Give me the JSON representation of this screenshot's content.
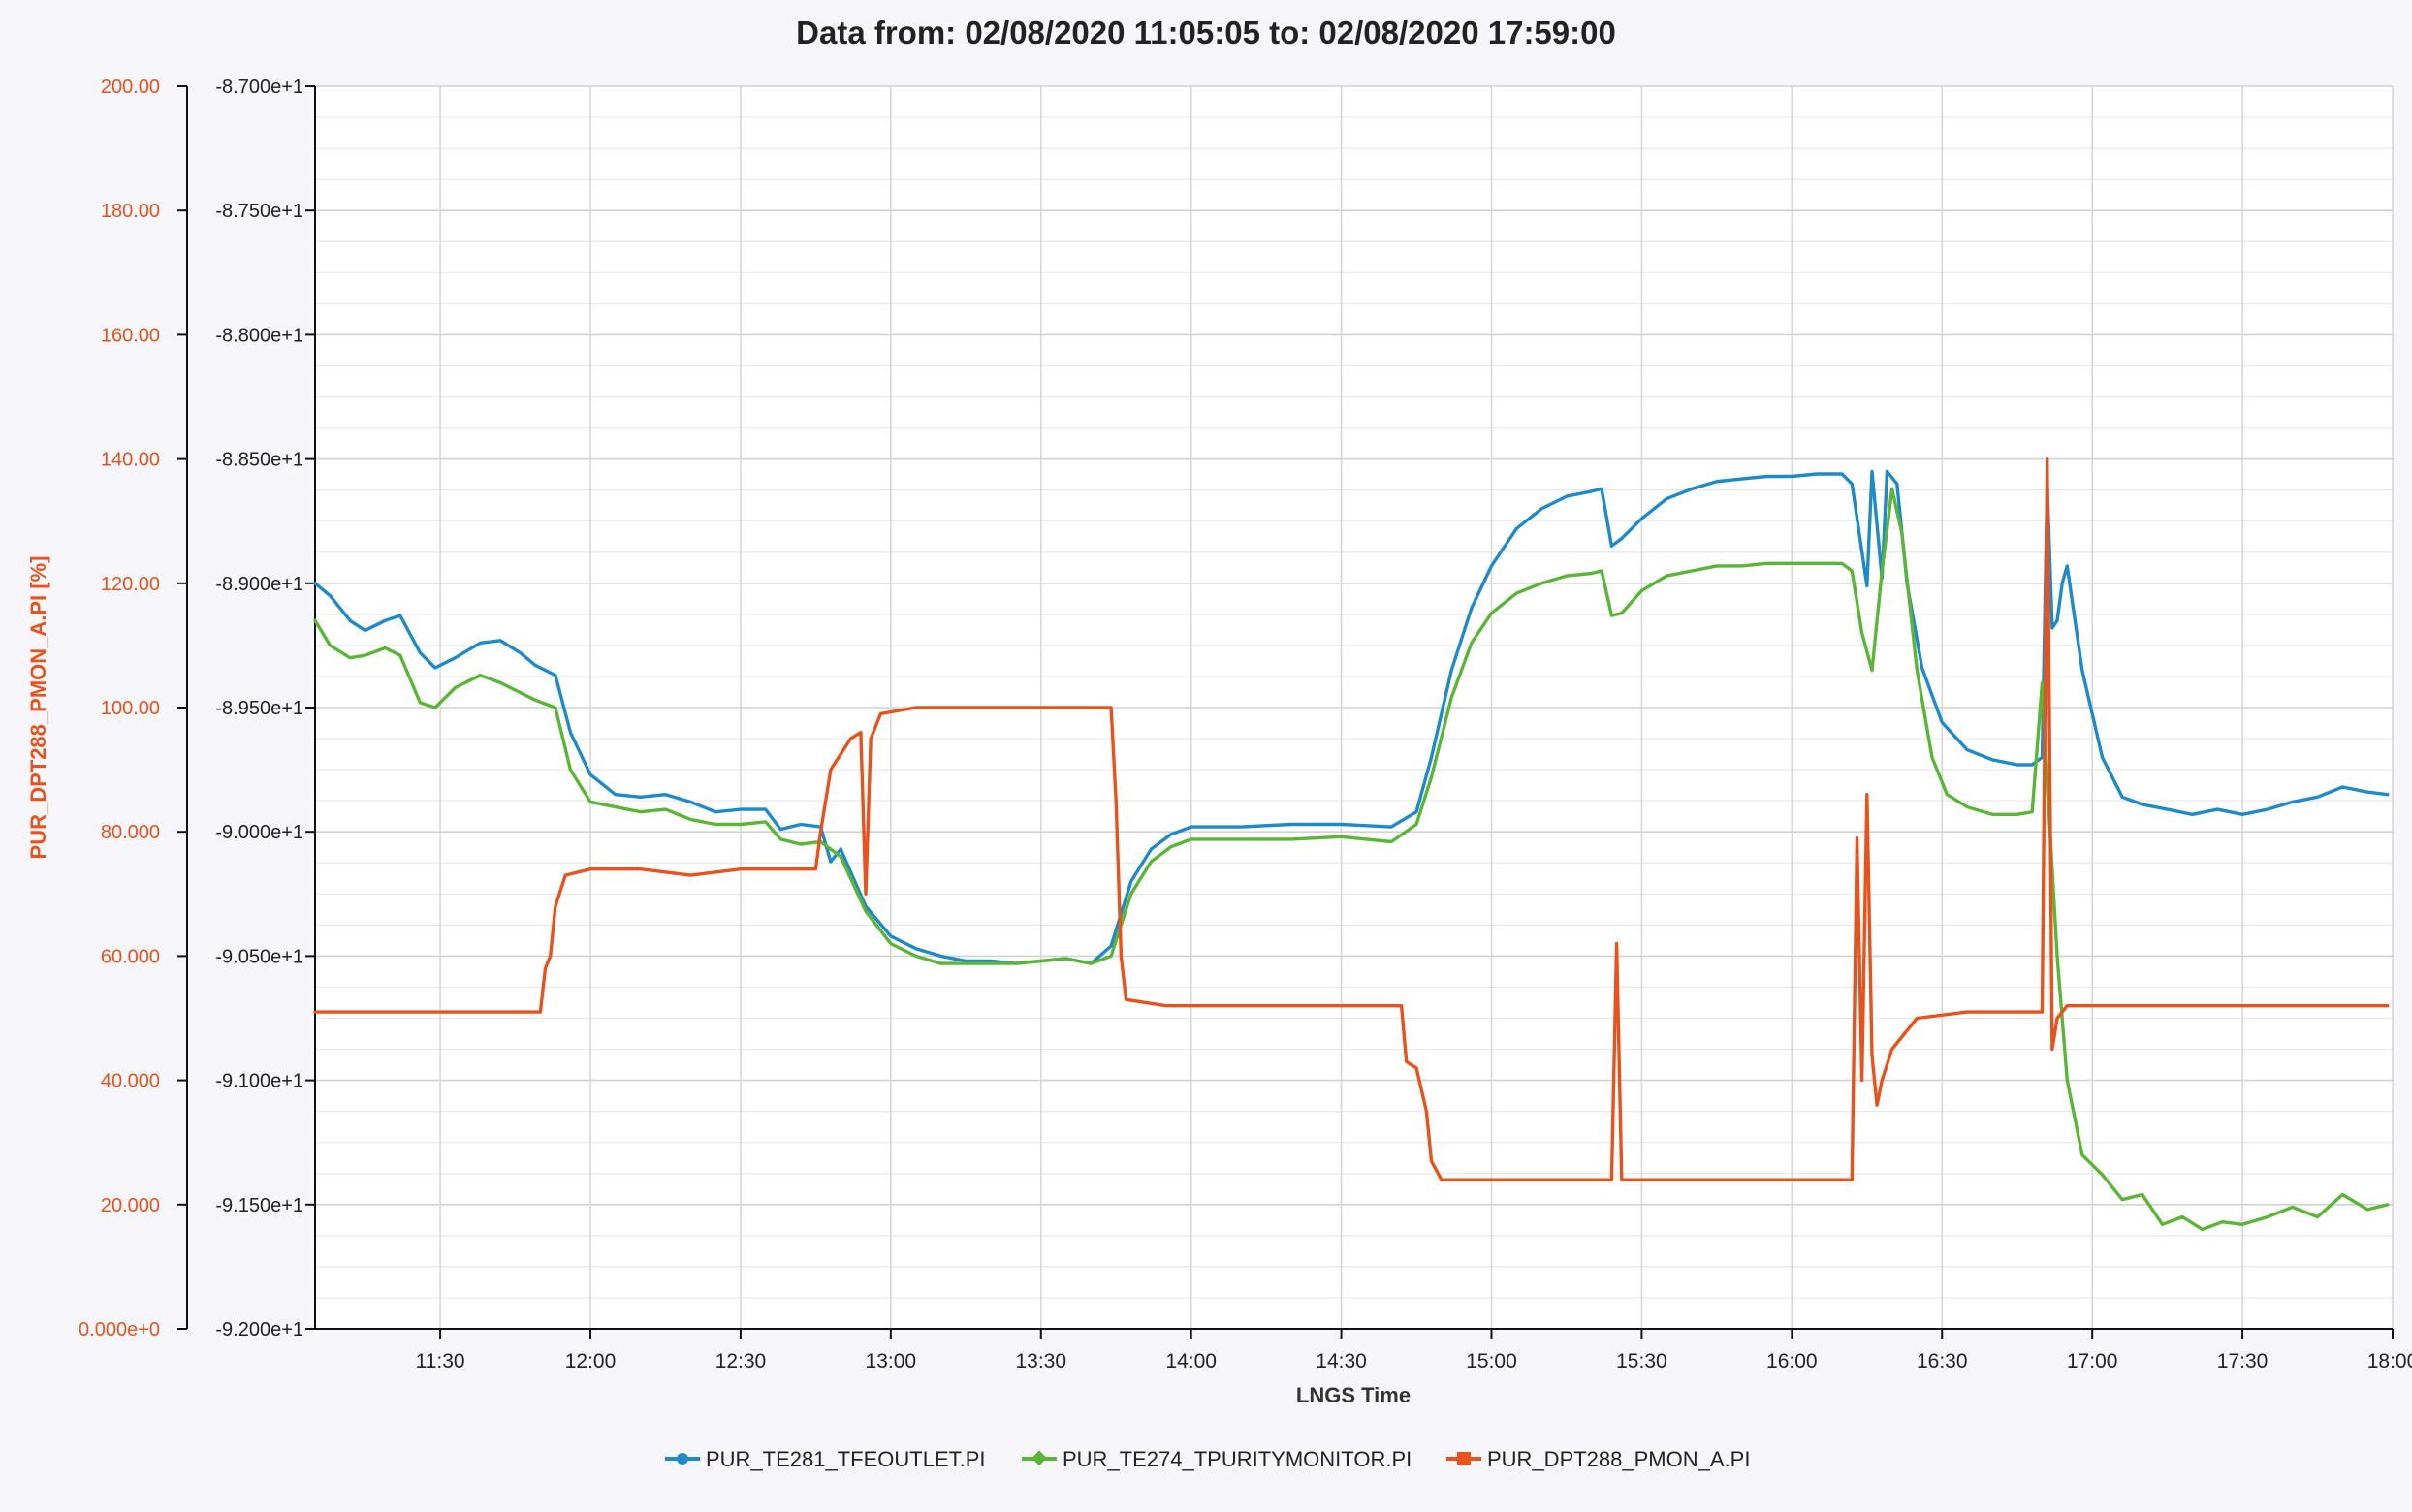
{
  "chart_data": {
    "type": "line",
    "title": "Data from: 02/08/2020 11:05:05 to: 02/08/2020 17:59:00",
    "xlabel": "LNGS Time",
    "x_range": [
      "11:05",
      "18:00"
    ],
    "x_ticks": [
      "11:30",
      "12:00",
      "12:30",
      "13:00",
      "13:30",
      "14:00",
      "14:30",
      "15:00",
      "15:30",
      "16:00",
      "16:30",
      "17:00",
      "17:30",
      "18:00"
    ],
    "y_left": {
      "label": "PUR_DPT288_PMON_A.PI [%]",
      "range": [
        0,
        200
      ],
      "ticks": [
        "0.000e+0",
        "20.000",
        "40.000",
        "60.000",
        "80.000",
        "100.00",
        "120.00",
        "140.00",
        "160.00",
        "180.00",
        "200.00"
      ],
      "color": "#e8531d"
    },
    "y_right_inner": {
      "label": "",
      "range": [
        -92.0,
        -87.0
      ],
      "ticks": [
        "-9.200e+1",
        "-9.150e+1",
        "-9.100e+1",
        "-9.050e+1",
        "-9.000e+1",
        "-8.950e+1",
        "-8.900e+1",
        "-8.850e+1",
        "-8.800e+1",
        "-8.750e+1",
        "-8.700e+1"
      ]
    },
    "grid": true,
    "legend_position": "bottom",
    "series": [
      {
        "name": "PUR_TE281_TFEOUTLET.PI",
        "axis": "inner",
        "color": "#1f8ac9",
        "points": [
          [
            "11:05",
            -89.0
          ],
          [
            "11:08",
            -89.05
          ],
          [
            "11:12",
            -89.15
          ],
          [
            "11:15",
            -89.19
          ],
          [
            "11:19",
            -89.15
          ],
          [
            "11:22",
            -89.13
          ],
          [
            "11:26",
            -89.28
          ],
          [
            "11:29",
            -89.34
          ],
          [
            "11:33",
            -89.3
          ],
          [
            "11:38",
            -89.24
          ],
          [
            "11:42",
            -89.23
          ],
          [
            "11:46",
            -89.28
          ],
          [
            "11:49",
            -89.33
          ],
          [
            "11:53",
            -89.37
          ],
          [
            "11:56",
            -89.6
          ],
          [
            "12:00",
            -89.77
          ],
          [
            "12:05",
            -89.85
          ],
          [
            "12:10",
            -89.86
          ],
          [
            "12:15",
            -89.85
          ],
          [
            "12:20",
            -89.88
          ],
          [
            "12:25",
            -89.92
          ],
          [
            "12:30",
            -89.91
          ],
          [
            "12:35",
            -89.91
          ],
          [
            "12:38",
            -89.99
          ],
          [
            "12:42",
            -89.97
          ],
          [
            "12:46",
            -89.98
          ],
          [
            "12:48",
            -90.12
          ],
          [
            "12:50",
            -90.07
          ],
          [
            "12:55",
            -90.3
          ],
          [
            "13:00",
            -90.42
          ],
          [
            "13:05",
            -90.47
          ],
          [
            "13:10",
            -90.5
          ],
          [
            "13:15",
            -90.52
          ],
          [
            "13:20",
            -90.52
          ],
          [
            "13:25",
            -90.53
          ],
          [
            "13:30",
            -90.52
          ],
          [
            "13:35",
            -90.51
          ],
          [
            "13:40",
            -90.53
          ],
          [
            "13:44",
            -90.46
          ],
          [
            "13:48",
            -90.2
          ],
          [
            "13:52",
            -90.07
          ],
          [
            "13:56",
            -90.01
          ],
          [
            "14:00",
            -89.98
          ],
          [
            "14:10",
            -89.98
          ],
          [
            "14:20",
            -89.97
          ],
          [
            "14:30",
            -89.97
          ],
          [
            "14:40",
            -89.98
          ],
          [
            "14:45",
            -89.92
          ],
          [
            "14:48",
            -89.7
          ],
          [
            "14:52",
            -89.35
          ],
          [
            "14:56",
            -89.1
          ],
          [
            "15:00",
            -88.93
          ],
          [
            "15:05",
            -88.78
          ],
          [
            "15:10",
            -88.7
          ],
          [
            "15:15",
            -88.65
          ],
          [
            "15:20",
            -88.63
          ],
          [
            "15:22",
            -88.62
          ],
          [
            "15:24",
            -88.85
          ],
          [
            "15:26",
            -88.82
          ],
          [
            "15:30",
            -88.74
          ],
          [
            "15:35",
            -88.66
          ],
          [
            "15:40",
            -88.62
          ],
          [
            "15:45",
            -88.59
          ],
          [
            "15:50",
            -88.58
          ],
          [
            "15:55",
            -88.57
          ],
          [
            "16:00",
            -88.57
          ],
          [
            "16:05",
            -88.56
          ],
          [
            "16:10",
            -88.56
          ],
          [
            "16:12",
            -88.6
          ],
          [
            "16:15",
            -89.01
          ],
          [
            "16:16",
            -88.55
          ],
          [
            "16:18",
            -88.98
          ],
          [
            "16:19",
            -88.55
          ],
          [
            "16:21",
            -88.6
          ],
          [
            "16:23",
            -89.0
          ],
          [
            "16:26",
            -89.34
          ],
          [
            "16:30",
            -89.56
          ],
          [
            "16:35",
            -89.67
          ],
          [
            "16:40",
            -89.71
          ],
          [
            "16:45",
            -89.73
          ],
          [
            "16:48",
            -89.73
          ],
          [
            "16:50",
            -89.7
          ],
          [
            "16:51",
            -88.6
          ],
          [
            "16:52",
            -89.18
          ],
          [
            "16:53",
            -89.15
          ],
          [
            "16:54",
            -89.0
          ],
          [
            "16:55",
            -88.93
          ],
          [
            "16:58",
            -89.35
          ],
          [
            "17:02",
            -89.7
          ],
          [
            "17:06",
            -89.86
          ],
          [
            "17:10",
            -89.89
          ],
          [
            "17:15",
            -89.91
          ],
          [
            "17:20",
            -89.93
          ],
          [
            "17:25",
            -89.91
          ],
          [
            "17:30",
            -89.93
          ],
          [
            "17:35",
            -89.91
          ],
          [
            "17:40",
            -89.88
          ],
          [
            "17:45",
            -89.86
          ],
          [
            "17:50",
            -89.82
          ],
          [
            "17:55",
            -89.84
          ],
          [
            "17:59",
            -89.85
          ]
        ]
      },
      {
        "name": "PUR_TE274_TPURITYMONITOR.PI",
        "axis": "inner",
        "color": "#5bb536",
        "points": [
          [
            "11:05",
            -89.15
          ],
          [
            "11:08",
            -89.25
          ],
          [
            "11:12",
            -89.3
          ],
          [
            "11:15",
            -89.29
          ],
          [
            "11:19",
            -89.26
          ],
          [
            "11:22",
            -89.29
          ],
          [
            "11:26",
            -89.48
          ],
          [
            "11:29",
            -89.5
          ],
          [
            "11:33",
            -89.42
          ],
          [
            "11:38",
            -89.37
          ],
          [
            "11:42",
            -89.4
          ],
          [
            "11:46",
            -89.44
          ],
          [
            "11:49",
            -89.47
          ],
          [
            "11:53",
            -89.5
          ],
          [
            "11:56",
            -89.75
          ],
          [
            "12:00",
            -89.88
          ],
          [
            "12:05",
            -89.9
          ],
          [
            "12:10",
            -89.92
          ],
          [
            "12:15",
            -89.91
          ],
          [
            "12:20",
            -89.95
          ],
          [
            "12:25",
            -89.97
          ],
          [
            "12:30",
            -89.97
          ],
          [
            "12:35",
            -89.96
          ],
          [
            "12:38",
            -90.03
          ],
          [
            "12:42",
            -90.05
          ],
          [
            "12:46",
            -90.04
          ],
          [
            "12:50",
            -90.1
          ],
          [
            "12:55",
            -90.32
          ],
          [
            "13:00",
            -90.45
          ],
          [
            "13:05",
            -90.5
          ],
          [
            "13:10",
            -90.53
          ],
          [
            "13:15",
            -90.53
          ],
          [
            "13:20",
            -90.53
          ],
          [
            "13:25",
            -90.53
          ],
          [
            "13:30",
            -90.52
          ],
          [
            "13:35",
            -90.51
          ],
          [
            "13:40",
            -90.53
          ],
          [
            "13:44",
            -90.5
          ],
          [
            "13:48",
            -90.25
          ],
          [
            "13:52",
            -90.12
          ],
          [
            "13:56",
            -90.06
          ],
          [
            "14:00",
            -90.03
          ],
          [
            "14:10",
            -90.03
          ],
          [
            "14:20",
            -90.03
          ],
          [
            "14:30",
            -90.02
          ],
          [
            "14:40",
            -90.04
          ],
          [
            "14:45",
            -89.97
          ],
          [
            "14:48",
            -89.78
          ],
          [
            "14:52",
            -89.46
          ],
          [
            "14:56",
            -89.24
          ],
          [
            "15:00",
            -89.12
          ],
          [
            "15:05",
            -89.04
          ],
          [
            "15:10",
            -89.0
          ],
          [
            "15:15",
            -88.97
          ],
          [
            "15:20",
            -88.96
          ],
          [
            "15:22",
            -88.95
          ],
          [
            "15:24",
            -89.13
          ],
          [
            "15:26",
            -89.12
          ],
          [
            "15:30",
            -89.03
          ],
          [
            "15:35",
            -88.97
          ],
          [
            "15:40",
            -88.95
          ],
          [
            "15:45",
            -88.93
          ],
          [
            "15:50",
            -88.93
          ],
          [
            "15:55",
            -88.92
          ],
          [
            "16:00",
            -88.92
          ],
          [
            "16:05",
            -88.92
          ],
          [
            "16:10",
            -88.92
          ],
          [
            "16:12",
            -88.95
          ],
          [
            "16:14",
            -89.2
          ],
          [
            "16:16",
            -89.35
          ],
          [
            "16:18",
            -88.95
          ],
          [
            "16:20",
            -88.62
          ],
          [
            "16:22",
            -88.8
          ],
          [
            "16:25",
            -89.35
          ],
          [
            "16:28",
            -89.7
          ],
          [
            "16:31",
            -89.85
          ],
          [
            "16:35",
            -89.9
          ],
          [
            "16:40",
            -89.93
          ],
          [
            "16:45",
            -89.93
          ],
          [
            "16:48",
            -89.92
          ],
          [
            "16:50",
            -89.4
          ],
          [
            "16:51",
            -89.8
          ],
          [
            "16:53",
            -90.5
          ],
          [
            "16:55",
            -91.0
          ],
          [
            "16:58",
            -91.3
          ],
          [
            "17:02",
            -91.38
          ],
          [
            "17:06",
            -91.48
          ],
          [
            "17:10",
            -91.46
          ],
          [
            "17:14",
            -91.58
          ],
          [
            "17:18",
            -91.55
          ],
          [
            "17:22",
            -91.6
          ],
          [
            "17:26",
            -91.57
          ],
          [
            "17:30",
            -91.58
          ],
          [
            "17:35",
            -91.55
          ],
          [
            "17:40",
            -91.51
          ],
          [
            "17:45",
            -91.55
          ],
          [
            "17:50",
            -91.46
          ],
          [
            "17:55",
            -91.52
          ],
          [
            "17:59",
            -91.5
          ]
        ]
      },
      {
        "name": "PUR_DPT288_PMON_A.PI",
        "axis": "left",
        "color": "#e8531d",
        "points": [
          [
            "11:05",
            51
          ],
          [
            "11:15",
            51
          ],
          [
            "11:25",
            51
          ],
          [
            "11:35",
            51
          ],
          [
            "11:45",
            51
          ],
          [
            "11:50",
            51
          ],
          [
            "11:51",
            58
          ],
          [
            "11:52",
            60
          ],
          [
            "11:53",
            68
          ],
          [
            "11:55",
            73
          ],
          [
            "12:00",
            74
          ],
          [
            "12:10",
            74
          ],
          [
            "12:20",
            73
          ],
          [
            "12:30",
            74
          ],
          [
            "12:40",
            74
          ],
          [
            "12:45",
            74
          ],
          [
            "12:46",
            80
          ],
          [
            "12:48",
            90
          ],
          [
            "12:52",
            95
          ],
          [
            "12:54",
            96
          ],
          [
            "12:55",
            70
          ],
          [
            "12:56",
            95
          ],
          [
            "12:58",
            99
          ],
          [
            "13:05",
            100
          ],
          [
            "13:15",
            100
          ],
          [
            "13:25",
            100
          ],
          [
            "13:35",
            100
          ],
          [
            "13:44",
            100
          ],
          [
            "13:45",
            85
          ],
          [
            "13:46",
            60
          ],
          [
            "13:47",
            53
          ],
          [
            "13:55",
            52
          ],
          [
            "14:05",
            52
          ],
          [
            "14:15",
            52
          ],
          [
            "14:25",
            52
          ],
          [
            "14:35",
            52
          ],
          [
            "14:42",
            52
          ],
          [
            "14:43",
            43
          ],
          [
            "14:45",
            42
          ],
          [
            "14:47",
            35
          ],
          [
            "14:48",
            27
          ],
          [
            "14:50",
            24
          ],
          [
            "15:00",
            24
          ],
          [
            "15:10",
            24
          ],
          [
            "15:20",
            24
          ],
          [
            "15:24",
            24
          ],
          [
            "15:25",
            62
          ],
          [
            "15:26",
            24
          ],
          [
            "15:35",
            24
          ],
          [
            "15:45",
            24
          ],
          [
            "15:55",
            24
          ],
          [
            "16:05",
            24
          ],
          [
            "16:12",
            24
          ],
          [
            "16:13",
            79
          ],
          [
            "16:14",
            40
          ],
          [
            "16:15",
            86
          ],
          [
            "16:16",
            44
          ],
          [
            "16:17",
            36
          ],
          [
            "16:18",
            40
          ],
          [
            "16:20",
            45
          ],
          [
            "16:25",
            50
          ],
          [
            "16:35",
            51
          ],
          [
            "16:45",
            51
          ],
          [
            "16:50",
            51
          ],
          [
            "16:51",
            140
          ],
          [
            "16:52",
            45
          ],
          [
            "16:53",
            50
          ],
          [
            "16:55",
            52
          ],
          [
            "17:05",
            52
          ],
          [
            "17:15",
            52
          ],
          [
            "17:25",
            52
          ],
          [
            "17:35",
            52
          ],
          [
            "17:45",
            52
          ],
          [
            "17:55",
            52
          ],
          [
            "17:59",
            52
          ]
        ]
      }
    ]
  }
}
